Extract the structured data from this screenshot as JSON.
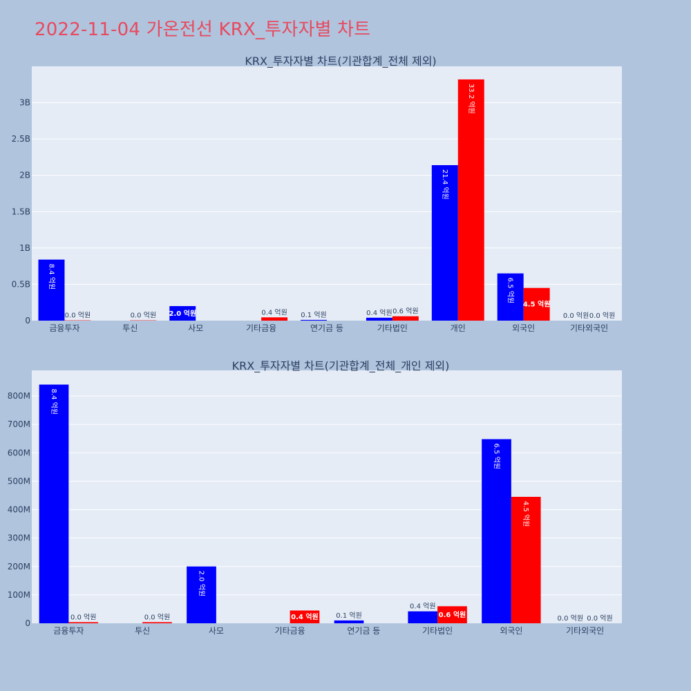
{
  "page": {
    "title": "2022-11-04 가온전선 KRX_투자자별 차트",
    "background": "#b0c4de",
    "title_color": "#e8495d"
  },
  "colors": {
    "buy": "#0000ff",
    "sell": "#ff0000",
    "plot_bg": "#e5ecf6",
    "grid": "#ffffff"
  },
  "chart_data": [
    {
      "type": "bar",
      "title": "KRX_투자자별 차트(기관합계_전체 제외)",
      "categories": [
        "금융투자",
        "투신",
        "사모",
        "기타금융",
        "연기금 등",
        "기타법인",
        "개인",
        "외국인",
        "기타외국인"
      ],
      "series": [
        {
          "color": "#0000ff",
          "values": [
            840000000,
            0,
            200000000,
            0,
            10000000,
            40000000,
            2140000000,
            650000000,
            0
          ],
          "labels": [
            "8.4 억원",
            "",
            "2.0 억원",
            "",
            "0.1 억원",
            "0.4 억원",
            "21.4 억원",
            "6.5 억원",
            "0.0 억원"
          ]
        },
        {
          "color": "#ff0000",
          "values": [
            4000000,
            4000000,
            0,
            45000000,
            0,
            60000000,
            3320000000,
            450000000,
            0
          ],
          "labels": [
            "0.0 억원",
            "0.0 억원",
            "",
            "0.4 억원",
            "",
            "0.6 억원",
            "33.2 억원",
            "4.5 억원",
            "0.0 억원"
          ]
        }
      ],
      "ylim": [
        0,
        3500000000
      ],
      "yticks": [
        0,
        500000000,
        1000000000,
        1500000000,
        2000000000,
        2500000000,
        3000000000
      ],
      "ytick_labels": [
        "0",
        "0.5B",
        "1B",
        "1.5B",
        "2B",
        "2.5B",
        "3B"
      ],
      "grid": true,
      "legend": "none"
    },
    {
      "type": "bar",
      "title": "KRX_투자자별 차트(기관합계_전체_개인 제외)",
      "categories": [
        "금융투자",
        "투신",
        "사모",
        "기타금융",
        "연기금 등",
        "기타법인",
        "외국인",
        "기타외국인"
      ],
      "series": [
        {
          "color": "#0000ff",
          "values": [
            840000000,
            0,
            200000000,
            0,
            10000000,
            42000000,
            648000000,
            0
          ],
          "labels": [
            "8.4 억원",
            "",
            "2.0 억원",
            "",
            "0.1 억원",
            "0.4 억원",
            "6.5 억원",
            "0.0 억원"
          ]
        },
        {
          "color": "#ff0000",
          "values": [
            4000000,
            4000000,
            0,
            45000000,
            0,
            60000000,
            445000000,
            0
          ],
          "labels": [
            "0.0 억원",
            "0.0 억원",
            "",
            "0.4 억원",
            "",
            "0.6 억원",
            "4.5 억원",
            "0.0 억원"
          ]
        }
      ],
      "ylim": [
        0,
        890000000
      ],
      "yticks": [
        0,
        100000000,
        200000000,
        300000000,
        400000000,
        500000000,
        600000000,
        700000000,
        800000000
      ],
      "ytick_labels": [
        "0",
        "100M",
        "200M",
        "300M",
        "400M",
        "500M",
        "600M",
        "700M",
        "800M"
      ],
      "grid": true,
      "legend": "none"
    }
  ]
}
